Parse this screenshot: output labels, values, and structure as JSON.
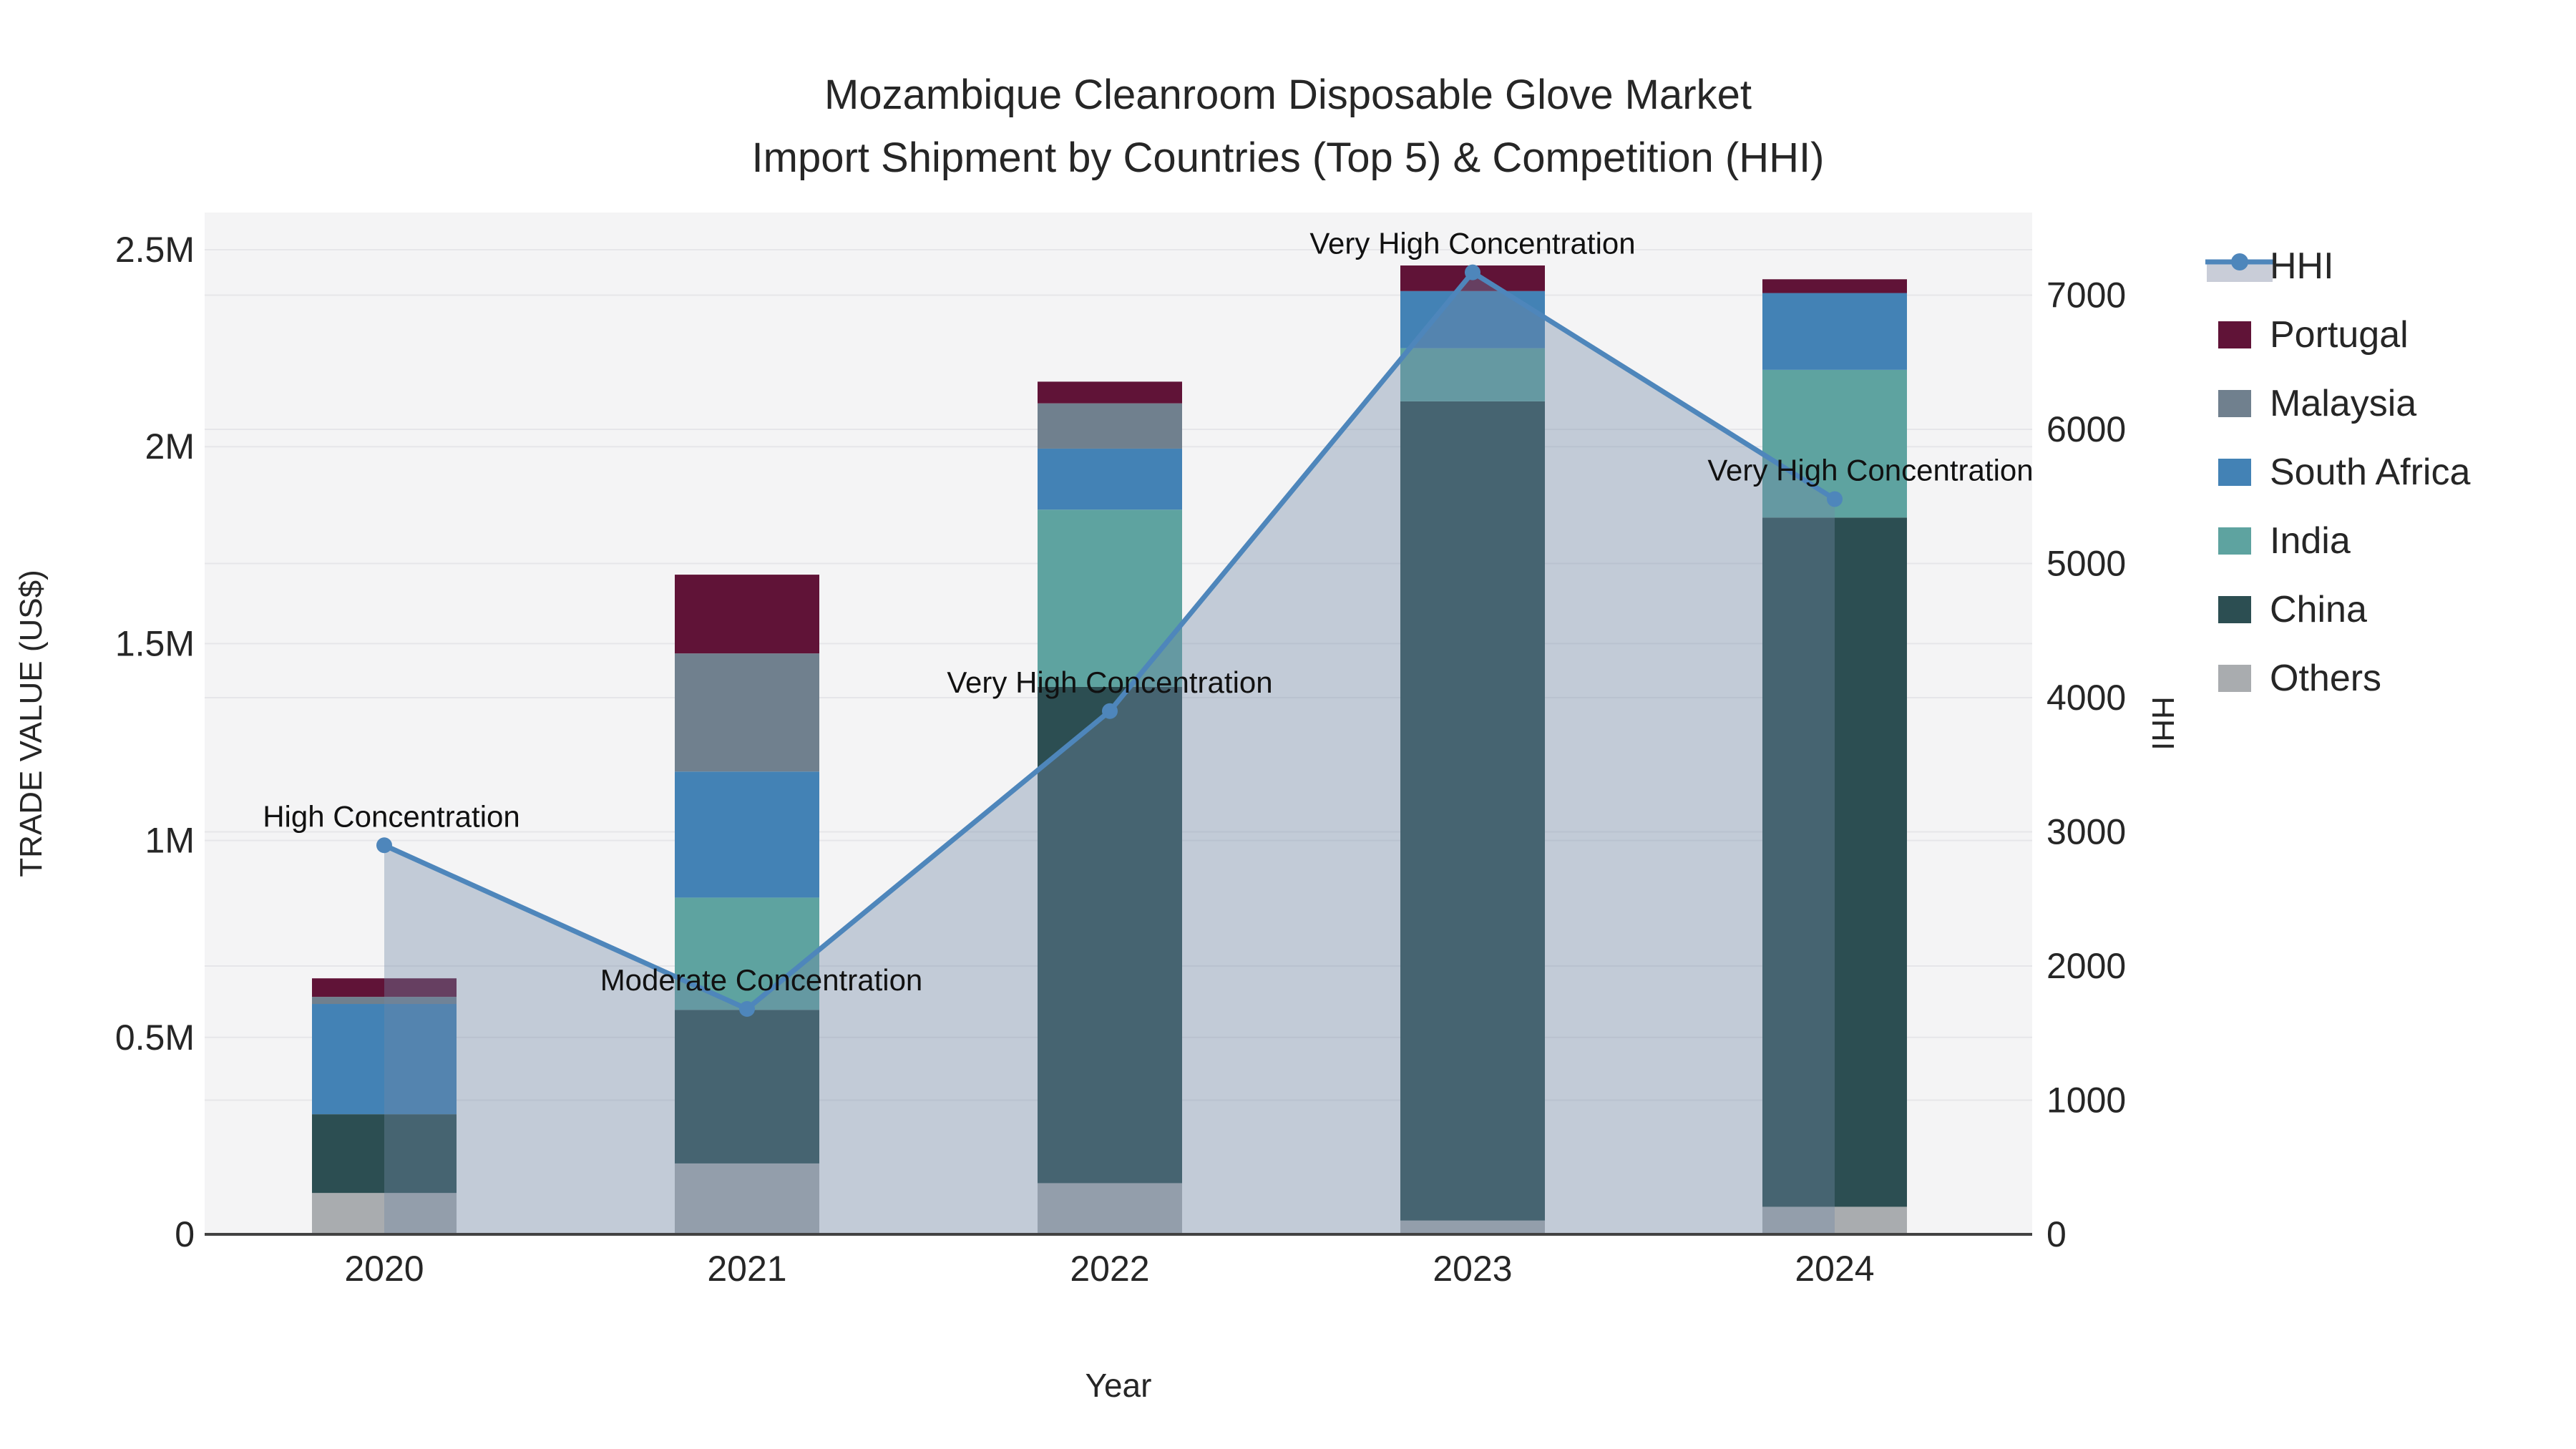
{
  "figure": {
    "title_line1": "Mozambique Cleanroom Disposable Glove Market",
    "title_line2": "Import Shipment by Countries (Top 5) & Competition (HHI)"
  },
  "axes": {
    "x": {
      "title": "Year",
      "ticks": [
        "2020",
        "2021",
        "2022",
        "2023",
        "2024"
      ]
    },
    "y_left": {
      "title": "TRADE VALUE (US$)",
      "ticks": [
        {
          "label": "0",
          "value_musd": 0
        },
        {
          "label": "0.5M",
          "value_musd": 0.5
        },
        {
          "label": "1M",
          "value_musd": 1
        },
        {
          "label": "1.5M",
          "value_musd": 1.5
        },
        {
          "label": "2M",
          "value_musd": 2
        },
        {
          "label": "2.5M",
          "value_musd": 2.5
        }
      ]
    },
    "y_right": {
      "title": "HHI",
      "ticks": [
        {
          "label": "0",
          "value": 0
        },
        {
          "label": "1000",
          "value": 1000
        },
        {
          "label": "2000",
          "value": 2000
        },
        {
          "label": "3000",
          "value": 3000
        },
        {
          "label": "4000",
          "value": 4000
        },
        {
          "label": "5000",
          "value": 5000
        },
        {
          "label": "6000",
          "value": 6000
        },
        {
          "label": "7000",
          "value": 7000
        }
      ]
    }
  },
  "legend": {
    "position": "right",
    "items": [
      {
        "label": "HHI",
        "type": "line-area",
        "color": "#4e86bb",
        "area_color": "#c9cdd8"
      },
      {
        "label": "Portugal",
        "type": "swatch",
        "color": "#601337"
      },
      {
        "label": "Malaysia",
        "type": "swatch",
        "color": "#70808e"
      },
      {
        "label": "South Africa",
        "type": "swatch",
        "color": "#4382b5"
      },
      {
        "label": "India",
        "type": "swatch",
        "color": "#5ea3a0"
      },
      {
        "label": "China",
        "type": "swatch",
        "color": "#2c4e52"
      },
      {
        "label": "Others",
        "type": "swatch",
        "color": "#a9acaf"
      }
    ]
  },
  "colors": {
    "plot_background": "#f4f4f5",
    "gridline": "#e6e6e9",
    "axis_line": "#424242",
    "text": "#262626",
    "hhi_line": "#4e86bb",
    "hhi_area": "rgba(113,137,166,0.38)"
  },
  "chart_data": {
    "type": "bar",
    "subtype": "stacked-bars-with-line-area-overlay",
    "title": "Mozambique Cleanroom Disposable Glove Market — Import Shipment by Countries (Top 5) & Competition (HHI)",
    "xlabel": "Year",
    "ylabel_left": "TRADE VALUE (US$)",
    "ylabel_right": "HHI",
    "categories": [
      "2020",
      "2021",
      "2022",
      "2023",
      "2024"
    ],
    "bar_unit": "US$ millions",
    "ylim_left_musd": [
      0,
      2.6
    ],
    "ylim_right_hhi": [
      0,
      7615
    ],
    "grid": true,
    "legend_position": "right",
    "series": [
      {
        "name": "Others",
        "stack_order": 1,
        "color": "#a9acaf",
        "values_musd": [
          0.105,
          0.18,
          0.13,
          0.035,
          0.07
        ]
      },
      {
        "name": "China",
        "stack_order": 2,
        "color": "#2c4e52",
        "values_musd": [
          0.2,
          0.39,
          1.26,
          2.08,
          1.75
        ]
      },
      {
        "name": "India",
        "stack_order": 3,
        "color": "#5ea3a0",
        "values_musd": [
          0.0,
          0.285,
          0.45,
          0.135,
          0.375
        ]
      },
      {
        "name": "South Africa",
        "stack_order": 4,
        "color": "#4382b5",
        "values_musd": [
          0.28,
          0.32,
          0.155,
          0.145,
          0.195
        ]
      },
      {
        "name": "Malaysia",
        "stack_order": 5,
        "color": "#70808e",
        "values_musd": [
          0.018,
          0.3,
          0.115,
          0.0,
          0.0
        ]
      },
      {
        "name": "Portugal",
        "stack_order": 6,
        "color": "#601337",
        "values_musd": [
          0.047,
          0.2,
          0.055,
          0.065,
          0.035
        ]
      }
    ],
    "totals_musd": [
      0.65,
      1.675,
      2.165,
      2.46,
      2.425
    ],
    "line": {
      "name": "HHI",
      "color": "#4e86bb",
      "area_fill": true,
      "area_color": "rgba(113,137,166,0.38)",
      "axis": "right",
      "values": [
        2900,
        1680,
        3900,
        7170,
        5480
      ],
      "annotations": [
        "High Concentration",
        "Moderate Concentration",
        "Very High Concentration",
        "Very High Concentration",
        "Very High Concentration"
      ]
    }
  }
}
